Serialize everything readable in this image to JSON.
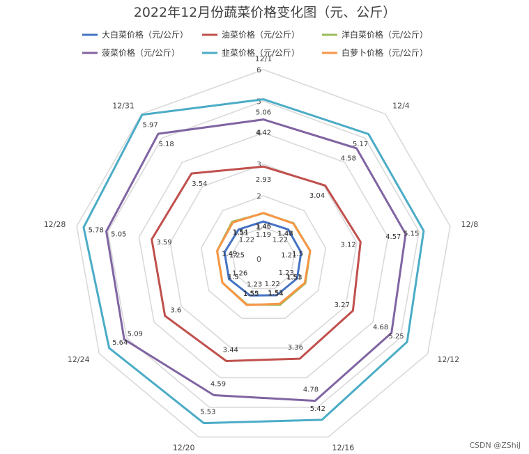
{
  "chart_data": {
    "type": "radar",
    "title": "2022年12月份蔬菜价格变化图（元、公斤）",
    "categories": [
      "12/1",
      "12/4",
      "12/8",
      "12/12",
      "12/16",
      "12/20",
      "12/24",
      "12/28",
      "12/31"
    ],
    "series": [
      {
        "name": "大白菜价格（元/公斤）",
        "color": "#4472C4",
        "values": [
          1.19,
          1.22,
          1.21,
          1.23,
          1.22,
          1.23,
          1.26,
          1.25,
          1.22
        ]
      },
      {
        "name": "油菜价格（元/公斤）",
        "color": "#C0504D",
        "values": [
          2.93,
          3.04,
          3.12,
          3.27,
          3.36,
          3.44,
          3.6,
          3.59,
          3.54
        ]
      },
      {
        "name": "洋白菜价格（元/公斤）",
        "color": "#9BBB59",
        "values": [
          1.45,
          1.48,
          1.5,
          1.53,
          1.54,
          1.53,
          1.5,
          1.49,
          1.54
        ]
      },
      {
        "name": "菠菜价格（元/公斤）",
        "color": "#8064A2",
        "values": [
          4.42,
          4.58,
          4.57,
          4.68,
          4.78,
          4.59,
          5.09,
          5.05,
          5.18
        ]
      },
      {
        "name": "韭菜价格（元/公斤）",
        "color": "#4BACC6",
        "values": [
          5.06,
          5.17,
          5.15,
          5.25,
          5.42,
          5.53,
          5.64,
          5.78,
          5.97
        ]
      },
      {
        "name": "白萝卜价格（元/公斤）",
        "color": "#F79646",
        "values": [
          1.46,
          1.47,
          1.5,
          1.51,
          1.51,
          1.55,
          1.5,
          1.49,
          1.51
        ]
      }
    ],
    "r_ticks": [
      0,
      1,
      2,
      3,
      4,
      5,
      6
    ],
    "rlim": [
      0,
      6
    ],
    "grid": true,
    "legend_position": "top"
  },
  "watermark": "CSDN @ZShiJ"
}
